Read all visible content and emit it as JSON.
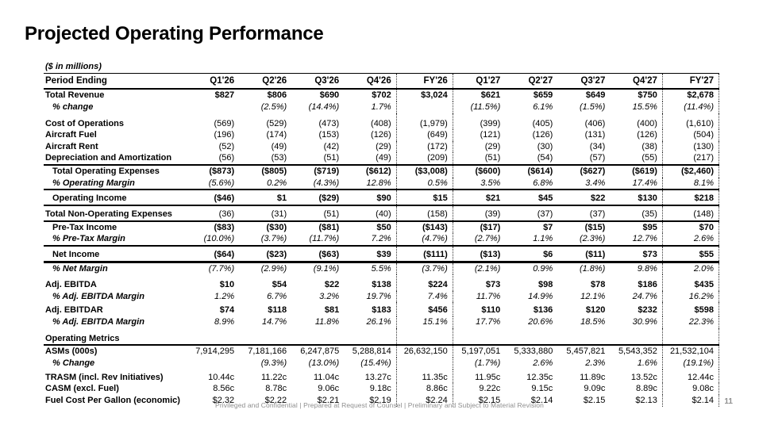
{
  "title": "Projected Operating Performance",
  "units_note": "($ in millions)",
  "footer": {
    "disclaimer": "Privileged and Confidential | Prepared at Request of Counsel | Preliminary and Subject to Material Revision",
    "page_number": "11"
  },
  "table": {
    "header_label": "Period Ending",
    "columns": [
      "Q1'26",
      "Q2'26",
      "Q3'26",
      "Q4'26",
      "FY'26",
      "Q1'27",
      "Q2'27",
      "Q3'27",
      "Q4'27",
      "FY'27"
    ],
    "rows": [
      {
        "label": "Total Revenue",
        "style": "total",
        "values": [
          "$827",
          "$806",
          "$690",
          "$702",
          "$3,024",
          "$621",
          "$659",
          "$649",
          "$750",
          "$2,678"
        ]
      },
      {
        "label": "% change",
        "style": "pct",
        "indent": true,
        "values": [
          "",
          "(2.5%)",
          "(14.4%)",
          "1.7%",
          "",
          "(11.5%)",
          "6.1%",
          "(1.5%)",
          "15.5%",
          "(11.4%)"
        ]
      },
      {
        "label": "Cost of Operations",
        "style": "plain",
        "gap": "m",
        "values": [
          "(569)",
          "(529)",
          "(473)",
          "(408)",
          "(1,979)",
          "(399)",
          "(405)",
          "(406)",
          "(400)",
          "(1,610)"
        ]
      },
      {
        "label": "Aircraft Fuel",
        "style": "plain",
        "values": [
          "(196)",
          "(174)",
          "(153)",
          "(126)",
          "(649)",
          "(121)",
          "(126)",
          "(131)",
          "(126)",
          "(504)"
        ]
      },
      {
        "label": "Aircraft Rent",
        "style": "plain",
        "values": [
          "(52)",
          "(49)",
          "(42)",
          "(29)",
          "(172)",
          "(29)",
          "(30)",
          "(34)",
          "(38)",
          "(130)"
        ]
      },
      {
        "label": "Depreciation and Amortization",
        "style": "plain",
        "values": [
          "(56)",
          "(53)",
          "(51)",
          "(49)",
          "(209)",
          "(51)",
          "(54)",
          "(57)",
          "(55)",
          "(217)"
        ]
      },
      {
        "label": "Total Operating Expenses",
        "style": "total",
        "indent": true,
        "border_top": "t2",
        "values": [
          "($873)",
          "($805)",
          "($719)",
          "($612)",
          "($3,008)",
          "($600)",
          "($614)",
          "($627)",
          "($619)",
          "($2,460)"
        ]
      },
      {
        "label": "% Operating Margin",
        "style": "pct",
        "indent": true,
        "values": [
          "(5.6%)",
          "0.2%",
          "(4.3%)",
          "12.8%",
          "0.5%",
          "3.5%",
          "6.8%",
          "3.4%",
          "17.4%",
          "8.1%"
        ]
      },
      {
        "label": "Operating Income",
        "style": "total",
        "indent": true,
        "border_top": "t2",
        "gap": "s",
        "values": [
          "($46)",
          "$1",
          "($29)",
          "$90",
          "$15",
          "$21",
          "$45",
          "$22",
          "$130",
          "$218"
        ]
      },
      {
        "label": "Total Non-Operating Expenses",
        "style": "plain",
        "border_top": "t2",
        "gap": "s",
        "values": [
          "(36)",
          "(31)",
          "(51)",
          "(40)",
          "(158)",
          "(39)",
          "(37)",
          "(37)",
          "(35)",
          "(148)"
        ]
      },
      {
        "label": "Pre-Tax Income",
        "style": "total",
        "indent": true,
        "border_top": "t2",
        "values": [
          "($83)",
          "($30)",
          "($81)",
          "$50",
          "($143)",
          "($17)",
          "$7",
          "($15)",
          "$95",
          "$70"
        ]
      },
      {
        "label": "% Pre-Tax Margin",
        "style": "pct",
        "indent": true,
        "values": [
          "(10.0%)",
          "(3.7%)",
          "(11.7%)",
          "7.2%",
          "(4.7%)",
          "(2.7%)",
          "1.1%",
          "(2.3%)",
          "12.7%",
          "2.6%"
        ]
      },
      {
        "label": "Net Income",
        "style": "total",
        "indent": true,
        "border_top": "t2",
        "gap": "s",
        "values": [
          "($64)",
          "($23)",
          "($63)",
          "$39",
          "($111)",
          "($13)",
          "$6",
          "($11)",
          "$73",
          "$55"
        ]
      },
      {
        "label": "% Net Margin",
        "style": "pct",
        "indent": true,
        "border_top": "t3",
        "values": [
          "(7.7%)",
          "(2.9%)",
          "(9.1%)",
          "5.5%",
          "(3.7%)",
          "(2.1%)",
          "0.9%",
          "(1.8%)",
          "9.8%",
          "2.0%"
        ]
      },
      {
        "label": "Adj. EBITDA",
        "style": "total",
        "gap": "m",
        "values": [
          "$10",
          "$54",
          "$22",
          "$138",
          "$224",
          "$73",
          "$98",
          "$78",
          "$186",
          "$435"
        ]
      },
      {
        "label": "% Adj. EBITDA Margin",
        "style": "pct",
        "indent": true,
        "values": [
          "1.2%",
          "6.7%",
          "3.2%",
          "19.7%",
          "7.4%",
          "11.7%",
          "14.9%",
          "12.1%",
          "24.7%",
          "16.2%"
        ]
      },
      {
        "label": "Adj. EBITDAR",
        "style": "total",
        "gap": "s",
        "values": [
          "$74",
          "$118",
          "$81",
          "$183",
          "$456",
          "$110",
          "$136",
          "$120",
          "$232",
          "$598"
        ]
      },
      {
        "label": "% Adj. EBITDA Margin",
        "style": "pct",
        "indent": true,
        "values": [
          "8.9%",
          "14.7%",
          "11.8%",
          "26.1%",
          "15.1%",
          "17.7%",
          "20.6%",
          "18.5%",
          "30.9%",
          "22.3%"
        ]
      },
      {
        "label": "Operating Metrics",
        "style": "section",
        "gap": "m",
        "values": [
          "",
          "",
          "",
          "",
          "",
          "",
          "",
          "",
          "",
          ""
        ]
      },
      {
        "label": "ASMs (000s)",
        "style": "plain",
        "border_top": "t2",
        "values": [
          "7,914,295",
          "7,181,166",
          "6,247,875",
          "5,288,814",
          "26,632,150",
          "5,197,051",
          "5,333,880",
          "5,457,821",
          "5,543,352",
          "21,532,104"
        ]
      },
      {
        "label": "% Change",
        "style": "pct",
        "indent": true,
        "values": [
          "",
          "(9.3%)",
          "(13.0%)",
          "(15.4%)",
          "",
          "(1.7%)",
          "2.6%",
          "2.3%",
          "1.6%",
          "(19.1%)"
        ]
      },
      {
        "label": "TRASM (incl. Rev Initiatives)",
        "style": "plain",
        "gap": "s",
        "values": [
          "10.44c",
          "11.22c",
          "11.04c",
          "13.27c",
          "11.35c",
          "11.95c",
          "12.35c",
          "11.89c",
          "13.52c",
          "12.44c"
        ]
      },
      {
        "label": "CASM (excl. Fuel)",
        "style": "plain",
        "values": [
          "8.56c",
          "8.78c",
          "9.06c",
          "9.18c",
          "8.86c",
          "9.22c",
          "9.15c",
          "9.09c",
          "8.89c",
          "9.08c"
        ]
      },
      {
        "label": "Fuel Cost Per Gallon (economic)",
        "style": "plain",
        "values": [
          "$2.32",
          "$2.22",
          "$2.21",
          "$2.19",
          "$2.24",
          "$2.15",
          "$2.14",
          "$2.15",
          "$2.13",
          "$2.14"
        ]
      }
    ]
  }
}
